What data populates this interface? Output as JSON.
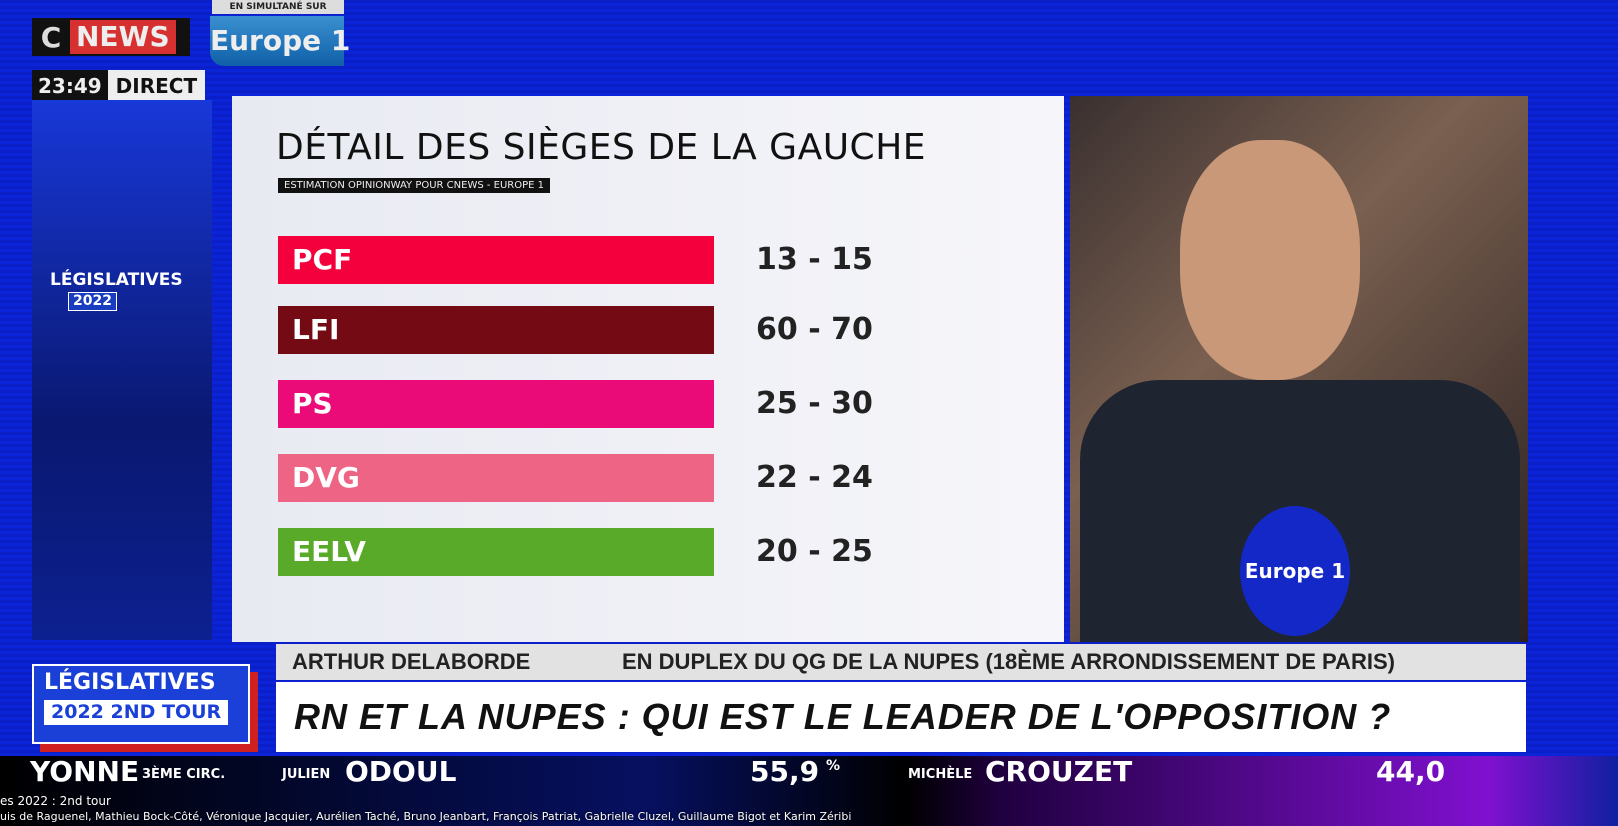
{
  "broadcast": {
    "channel_c": "C",
    "channel_news": "NEWS",
    "simulcast": "EN SIMULTANÉ SUR",
    "partner": "Europe 1",
    "time": "23:49",
    "live": "DIRECT",
    "side_badge": {
      "label": "LÉGISLATIVES",
      "year": "2022"
    },
    "main_badge": {
      "label": "LÉGISLATIVES",
      "year": "2022 2ND TOUR"
    },
    "reporter": "ARTHUR DELABORDE",
    "location": "EN DUPLEX DU QG DE LA NUPES (18ÈME ARRONDISSEMENT DE PARIS)",
    "headline": "RN ET LA NUPES :  QUI EST LE LEADER DE L'OPPOSITION ?",
    "mic_label": "Europe 1",
    "ticker": {
      "dept": "YONNE",
      "circ": "3ÈME CIRC.",
      "cand1_first": "JULIEN",
      "cand1_last": "ODOUL",
      "cand1_pct": "55,9",
      "cand2_first": "MICHÈLE",
      "cand2_last": "CROUZET",
      "cand2_pct": "44,0",
      "pct": "%"
    }
  },
  "overlay": {
    "title": "es 2022 : 2nd tour",
    "guests": "uis de Raguenel, Mathieu Bock-Côté, Véronique Jacquier, Aurélien Taché, Bruno Jeanbart, François Patriat, Gabrielle Cluzel, Guillaume Bigot et Karim Zéribi"
  },
  "chart_data": {
    "type": "bar",
    "title": "DÉTAIL DES SIÈGES DE LA GAUCHE",
    "subtitle": "ESTIMATION OPINIONWAY POUR CNEWS - EUROPE 1",
    "categories": [
      "PCF",
      "LFI",
      "PS",
      "DVG",
      "EELV"
    ],
    "labels": [
      "13 - 15",
      "60 - 70",
      "25 - 30",
      "22 - 24",
      "20 - 25"
    ],
    "ranges": [
      [
        13,
        15
      ],
      [
        60,
        70
      ],
      [
        25,
        30
      ],
      [
        22,
        24
      ],
      [
        20,
        25
      ]
    ],
    "colors": [
      "#f4003c",
      "#730a14",
      "#ea0a78",
      "#ee6484",
      "#58aa28"
    ]
  }
}
